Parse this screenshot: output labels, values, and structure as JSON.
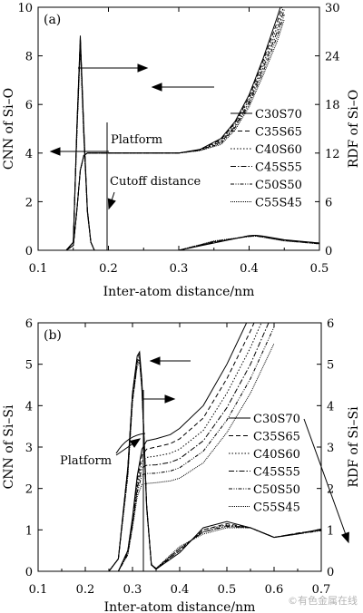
{
  "watermark": "©有色金属在线",
  "chart_data": [
    {
      "type": "line",
      "panel_label": "(a)",
      "xlabel": "Inter-atom distance/nm",
      "ylabel_left": "CNN of Si–O",
      "ylabel_right": "RDF of Si–O",
      "xlim": [
        0.1,
        0.5
      ],
      "ylim_left": [
        0,
        10
      ],
      "ylim_right": [
        0,
        30
      ],
      "x_ticks": [
        "0.1",
        "0.2",
        "0.3",
        "0.4",
        "0.5"
      ],
      "y_ticks_left": [
        "0",
        "2",
        "4",
        "6",
        "8",
        "10"
      ],
      "y_ticks_right": [
        "0",
        "6",
        "12",
        "18",
        "24",
        "30"
      ],
      "legend": [
        "C30S70",
        "C35S65",
        "C40S60",
        "C45S55",
        "C50S50",
        "C55S45"
      ],
      "legend_position": "right",
      "annotations": {
        "platform": "Platform",
        "cutoff": "Cutoff distance"
      },
      "cutoff_x": 0.2,
      "rdf": {
        "x": [
          0.1,
          0.14,
          0.15,
          0.155,
          0.16,
          0.165,
          0.17,
          0.175,
          0.18,
          0.2,
          0.25,
          0.3,
          0.35,
          0.4,
          0.41,
          0.42,
          0.45,
          0.5
        ],
        "series": [
          {
            "name": "C30S70",
            "values": [
              0,
              0,
              1.0,
              15.0,
              26.5,
              15.0,
              5.0,
              1.0,
              0,
              0,
              0,
              0,
              0.9,
              1.8,
              1.85,
              1.75,
              1.3,
              0.9
            ]
          },
          {
            "name": "C35S65",
            "values": [
              0,
              0,
              1.0,
              14.8,
              26.3,
              14.8,
              5.0,
              1.0,
              0,
              0,
              0,
              0,
              0.95,
              1.8,
              1.85,
              1.7,
              1.25,
              0.9
            ]
          },
          {
            "name": "C40S60",
            "values": [
              0,
              0,
              1.0,
              14.5,
              26.0,
              14.5,
              4.9,
              1.0,
              0,
              0,
              0,
              0,
              1.0,
              1.75,
              1.8,
              1.7,
              1.25,
              0.85
            ]
          },
          {
            "name": "C45S55",
            "values": [
              0,
              0,
              1.0,
              14.3,
              25.8,
              14.3,
              4.8,
              1.0,
              0,
              0,
              0,
              0,
              1.05,
              1.75,
              1.8,
              1.65,
              1.2,
              0.85
            ]
          },
          {
            "name": "C50S50",
            "values": [
              0,
              0,
              1.0,
              14.0,
              25.5,
              14.0,
              4.7,
              1.0,
              0,
              0,
              0,
              0,
              1.1,
              1.7,
              1.75,
              1.65,
              1.2,
              0.8
            ]
          },
          {
            "name": "C55S45",
            "values": [
              0,
              0,
              1.0,
              13.8,
              25.2,
              13.8,
              4.6,
              1.0,
              0,
              0,
              0,
              0,
              1.15,
              1.7,
              1.75,
              1.6,
              1.15,
              0.8
            ]
          }
        ]
      },
      "cnn": {
        "x": [
          0.1,
          0.14,
          0.15,
          0.155,
          0.16,
          0.165,
          0.17,
          0.2,
          0.25,
          0.3,
          0.33,
          0.36,
          0.38,
          0.4,
          0.42,
          0.44,
          0.45
        ],
        "series": [
          {
            "name": "C30S70",
            "values": [
              0,
              0,
              0.2,
              1.6,
              3.3,
              3.9,
              4.0,
              4.0,
              4.0,
              4.0,
              4.15,
              4.6,
              5.3,
              6.4,
              7.9,
              9.6,
              10.5
            ]
          },
          {
            "name": "C35S65",
            "values": [
              0,
              0,
              0.2,
              1.6,
              3.3,
              3.9,
              4.0,
              4.0,
              4.0,
              4.0,
              4.14,
              4.55,
              5.25,
              6.3,
              7.8,
              9.4,
              10.3
            ]
          },
          {
            "name": "C40S60",
            "values": [
              0,
              0,
              0.2,
              1.6,
              3.3,
              3.9,
              4.0,
              4.0,
              4.0,
              4.0,
              4.13,
              4.5,
              5.2,
              6.2,
              7.65,
              9.2,
              10.1
            ]
          },
          {
            "name": "C45S55",
            "values": [
              0,
              0,
              0.2,
              1.6,
              3.3,
              3.9,
              4.0,
              4.0,
              4.0,
              4.0,
              4.12,
              4.45,
              5.1,
              6.1,
              7.5,
              9.0,
              9.9
            ]
          },
          {
            "name": "C50S50",
            "values": [
              0,
              0,
              0.2,
              1.6,
              3.3,
              3.9,
              4.0,
              4.0,
              4.0,
              4.0,
              4.11,
              4.4,
              5.05,
              6.0,
              7.35,
              8.8,
              9.7
            ]
          },
          {
            "name": "C55S45",
            "values": [
              0,
              0,
              0.2,
              1.6,
              3.3,
              3.9,
              4.0,
              4.0,
              4.0,
              4.0,
              4.1,
              4.35,
              4.95,
              5.9,
              7.2,
              8.6,
              9.5
            ]
          }
        ]
      }
    },
    {
      "type": "line",
      "panel_label": "(b)",
      "xlabel": "Inter-atom distance/nm",
      "ylabel_left": "CNN of Si–Si",
      "ylabel_right": "RDF of Si–Si",
      "xlim": [
        0.1,
        0.7
      ],
      "ylim_left": [
        0,
        6
      ],
      "ylim_right": [
        0,
        6
      ],
      "x_ticks": [
        "0.1",
        "0.2",
        "0.3",
        "0.4",
        "0.5",
        "0.6",
        "0.7"
      ],
      "y_ticks_left": [
        "0",
        "1",
        "2",
        "3",
        "4",
        "5",
        "6"
      ],
      "y_ticks_right": [
        "0",
        "1",
        "2",
        "3",
        "4",
        "5",
        "6"
      ],
      "legend": [
        "C30S70",
        "C35S65",
        "C40S60",
        "C45S55",
        "C50S50",
        "C55S45"
      ],
      "legend_position": "right",
      "annotations": {
        "platform": "Platform"
      },
      "rdf": {
        "x": [
          0.1,
          0.25,
          0.27,
          0.29,
          0.3,
          0.31,
          0.315,
          0.32,
          0.33,
          0.34,
          0.35,
          0.4,
          0.45,
          0.5,
          0.55,
          0.6,
          0.65,
          0.7
        ],
        "series": [
          {
            "name": "C30S70",
            "values": [
              0,
              0,
              0.3,
              2.5,
              4.3,
              5.2,
              5.3,
              4.6,
              1.6,
              0.15,
              0.05,
              0.45,
              1.05,
              1.2,
              1.05,
              0.82,
              0.9,
              1.02
            ]
          },
          {
            "name": "C35S65",
            "values": [
              0,
              0,
              0.3,
              2.5,
              4.3,
              5.15,
              5.25,
              4.55,
              1.6,
              0.15,
              0.05,
              0.5,
              1.0,
              1.15,
              1.05,
              0.82,
              0.92,
              1.0
            ]
          },
          {
            "name": "C40S60",
            "values": [
              0,
              0,
              0.3,
              2.4,
              4.2,
              5.1,
              5.2,
              4.5,
              1.6,
              0.15,
              0.06,
              0.5,
              1.0,
              1.12,
              1.05,
              0.82,
              0.9,
              1.0
            ]
          },
          {
            "name": "C45S55",
            "values": [
              0,
              0,
              0.3,
              2.4,
              4.2,
              5.05,
              5.15,
              4.45,
              1.55,
              0.16,
              0.06,
              0.55,
              0.95,
              1.1,
              1.05,
              0.82,
              0.92,
              1.0
            ]
          },
          {
            "name": "C50S50",
            "values": [
              0,
              0,
              0.3,
              2.3,
              4.1,
              5.0,
              5.1,
              4.4,
              1.55,
              0.16,
              0.07,
              0.55,
              0.95,
              1.08,
              1.05,
              0.82,
              0.9,
              0.98
            ]
          },
          {
            "name": "C55S45",
            "values": [
              0,
              0,
              0.3,
              2.3,
              4.1,
              4.95,
              5.05,
              4.35,
              1.5,
              0.17,
              0.07,
              0.6,
              0.9,
              1.05,
              1.05,
              0.82,
              0.92,
              0.98
            ]
          }
        ]
      },
      "cnn": {
        "x": [
          0.1,
          0.27,
          0.29,
          0.3,
          0.31,
          0.32,
          0.33,
          0.35,
          0.38,
          0.4,
          0.45,
          0.5,
          0.55,
          0.6
        ],
        "series": [
          {
            "name": "C30S70",
            "values": [
              0,
              0,
              0.5,
              1.3,
              2.3,
              2.95,
              3.15,
              3.2,
              3.3,
              3.45,
              4.0,
              5.0,
              6.2,
              7.5
            ]
          },
          {
            "name": "C35S65",
            "values": [
              0,
              0,
              0.5,
              1.25,
              2.2,
              2.8,
              2.95,
              3.0,
              3.08,
              3.2,
              3.7,
              4.65,
              5.8,
              7.1
            ]
          },
          {
            "name": "C40S60",
            "values": [
              0,
              0,
              0.45,
              1.2,
              2.1,
              2.65,
              2.75,
              2.78,
              2.85,
              2.95,
              3.4,
              4.3,
              5.4,
              6.7
            ]
          },
          {
            "name": "C45S55",
            "values": [
              0,
              0,
              0.45,
              1.15,
              2.0,
              2.5,
              2.56,
              2.57,
              2.63,
              2.72,
              3.15,
              3.95,
              5.0,
              6.3
            ]
          },
          {
            "name": "C50S50",
            "values": [
              0,
              0,
              0.4,
              1.1,
              1.9,
              2.33,
              2.36,
              2.37,
              2.42,
              2.5,
              2.9,
              3.65,
              4.65,
              5.9
            ]
          },
          {
            "name": "C55S45",
            "values": [
              0,
              0,
              0.4,
              1.05,
              1.8,
              2.1,
              2.12,
              2.14,
              2.18,
              2.25,
              2.62,
              3.35,
              4.3,
              5.5
            ]
          }
        ]
      }
    }
  ]
}
